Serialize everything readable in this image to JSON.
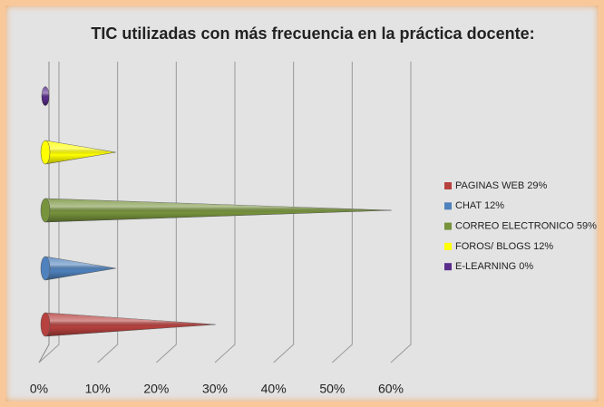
{
  "chart_data": {
    "type": "cone-bar",
    "title": "TIC utilizadas con más frecuencia en la práctica docente:",
    "categories": [
      "PAGINAS WEB 29%",
      "CHAT 12%",
      "CORREO ELECTRONICO 59%",
      "FOROS/ BLOGS 12%",
      "E-LEARNING 0%"
    ],
    "values": [
      29,
      12,
      59,
      12,
      0
    ],
    "colors": [
      "#b7413e",
      "#4f81bd",
      "#77933c",
      "#ffff00",
      "#5b2c8c"
    ],
    "xlim": [
      0,
      60
    ],
    "xticks": [
      {
        "value": 0,
        "label": "0%"
      },
      {
        "value": 10,
        "label": "10%"
      },
      {
        "value": 20,
        "label": "20%"
      },
      {
        "value": 30,
        "label": "30%"
      },
      {
        "value": 40,
        "label": "40%"
      },
      {
        "value": 50,
        "label": "50%"
      },
      {
        "value": 60,
        "label": "60%"
      }
    ],
    "grid": true,
    "legend": "right"
  }
}
